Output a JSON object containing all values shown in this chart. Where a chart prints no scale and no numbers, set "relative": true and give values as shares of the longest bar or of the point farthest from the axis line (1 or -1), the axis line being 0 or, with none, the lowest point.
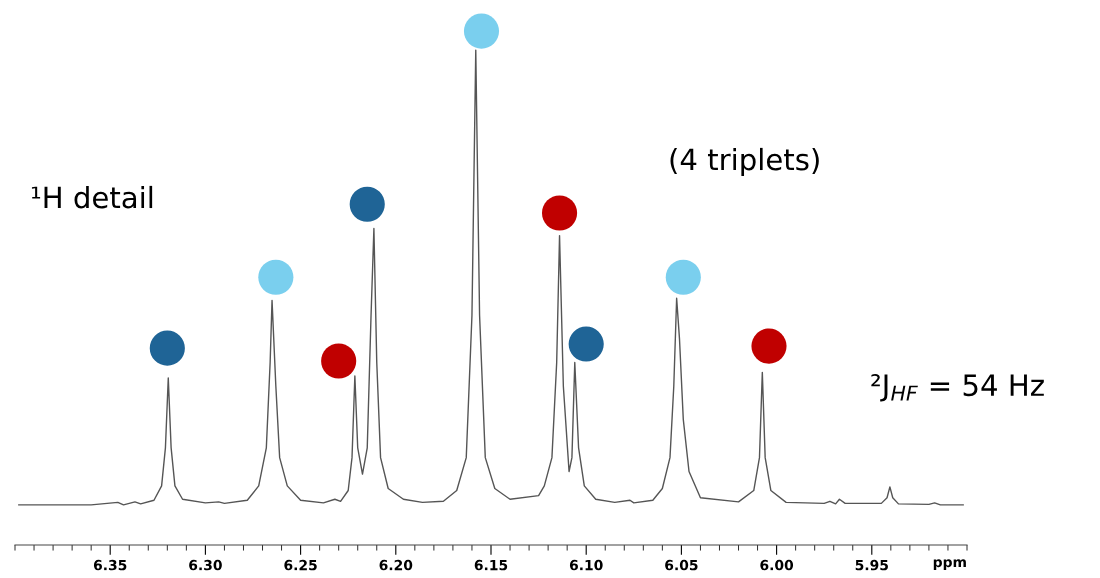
{
  "chart_data": {
    "type": "line",
    "relative": true,
    "xlabel": "ppm",
    "xlim": [
      6.4,
      5.9
    ],
    "xticks": [
      6.35,
      {
        "value": 6.3,
        "label": "6.30"
      },
      6.25,
      {
        "value": 6.2,
        "label": "6.20"
      },
      6.15,
      {
        "value": 6.1,
        "label": "6.10"
      },
      6.05,
      {
        "value": 6.0,
        "label": "6.00"
      },
      5.95
    ],
    "grid": false,
    "tick_labels": "x",
    "annotations": [
      "¹H detail",
      "(4 triplets)",
      "²J$_{HF}$ = 54 Hz"
    ],
    "series": [
      {
        "type": "line",
        "color": "#555555",
        "marker": "none",
        "line_style": "solid",
        "x": [
          6.398,
          6.36,
          6.346,
          6.343,
          6.337,
          6.334,
          6.327,
          6.323,
          6.321,
          6.3195,
          6.318,
          6.316,
          6.312,
          6.3,
          6.293,
          6.29,
          6.278,
          6.272,
          6.268,
          6.266,
          6.265,
          6.263,
          6.261,
          6.257,
          6.25,
          6.238,
          6.232,
          6.229,
          6.225,
          6.223,
          6.2215,
          6.22,
          6.2175,
          6.215,
          6.213,
          6.2115,
          6.21,
          6.208,
          6.204,
          6.196,
          6.186,
          6.175,
          6.168,
          6.163,
          6.16,
          6.158,
          6.156,
          6.153,
          6.148,
          6.14,
          6.125,
          6.122,
          6.118,
          6.1155,
          6.114,
          6.112,
          6.109,
          6.1075,
          6.106,
          6.104,
          6.101,
          6.095,
          6.085,
          6.077,
          6.075,
          6.065,
          6.06,
          6.056,
          6.054,
          6.0525,
          6.051,
          6.049,
          6.046,
          6.04,
          6.02,
          6.012,
          6.009,
          6.0075,
          6.006,
          6.003,
          5.995,
          5.975,
          5.972,
          5.969,
          5.967,
          5.964,
          5.945,
          5.942,
          5.9405,
          5.939,
          5.936,
          5.92,
          5.917,
          5.914,
          5.902
        ],
        "values": [
          0.078,
          0.078,
          0.083,
          0.078,
          0.084,
          0.08,
          0.087,
          0.115,
          0.189,
          0.325,
          0.189,
          0.115,
          0.089,
          0.082,
          0.084,
          0.081,
          0.087,
          0.115,
          0.189,
          0.355,
          0.476,
          0.309,
          0.17,
          0.115,
          0.087,
          0.082,
          0.089,
          0.085,
          0.106,
          0.17,
          0.329,
          0.189,
          0.138,
          0.189,
          0.447,
          0.616,
          0.355,
          0.17,
          0.11,
          0.089,
          0.083,
          0.085,
          0.106,
          0.17,
          0.447,
          0.963,
          0.447,
          0.17,
          0.11,
          0.089,
          0.096,
          0.115,
          0.17,
          0.355,
          0.602,
          0.309,
          0.143,
          0.17,
          0.355,
          0.189,
          0.115,
          0.089,
          0.083,
          0.087,
          0.082,
          0.087,
          0.11,
          0.17,
          0.309,
          0.48,
          0.401,
          0.244,
          0.143,
          0.092,
          0.084,
          0.106,
          0.17,
          0.336,
          0.17,
          0.106,
          0.083,
          0.081,
          0.085,
          0.08,
          0.089,
          0.081,
          0.081,
          0.092,
          0.113,
          0.092,
          0.08,
          0.079,
          0.082,
          0.078,
          0.078
        ]
      },
      {
        "type": "scatter",
        "marker": "circle",
        "x": [
          6.32,
          6.263,
          6.23,
          6.215,
          6.155,
          6.114,
          6.1,
          6.049,
          6.004
        ],
        "values": [
          0.383,
          0.521,
          0.358,
          0.663,
          1.0,
          0.646,
          0.391,
          0.521,
          0.387
        ],
        "colors": [
          "#1f6496",
          "#7acfee",
          "#c00000",
          "#1f6496",
          "#7acfee",
          "#c00000",
          "#1f6496",
          "#7acfee",
          "#c00000"
        ]
      }
    ]
  }
}
